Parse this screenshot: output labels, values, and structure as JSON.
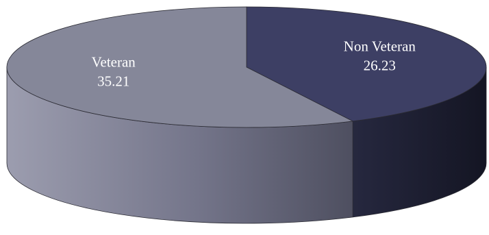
{
  "chart_data": {
    "type": "pie",
    "style": "3d",
    "title": "",
    "legend": "none",
    "slices": [
      {
        "name": "Non Veteran",
        "value": 26.23,
        "label_name": "Non Veteran",
        "label_value": "26.23",
        "color": "#3d3f64"
      },
      {
        "name": "Veteran",
        "value": 35.21,
        "label_name": "Veteran",
        "label_value": "35.21",
        "color": "#858799"
      }
    ]
  }
}
